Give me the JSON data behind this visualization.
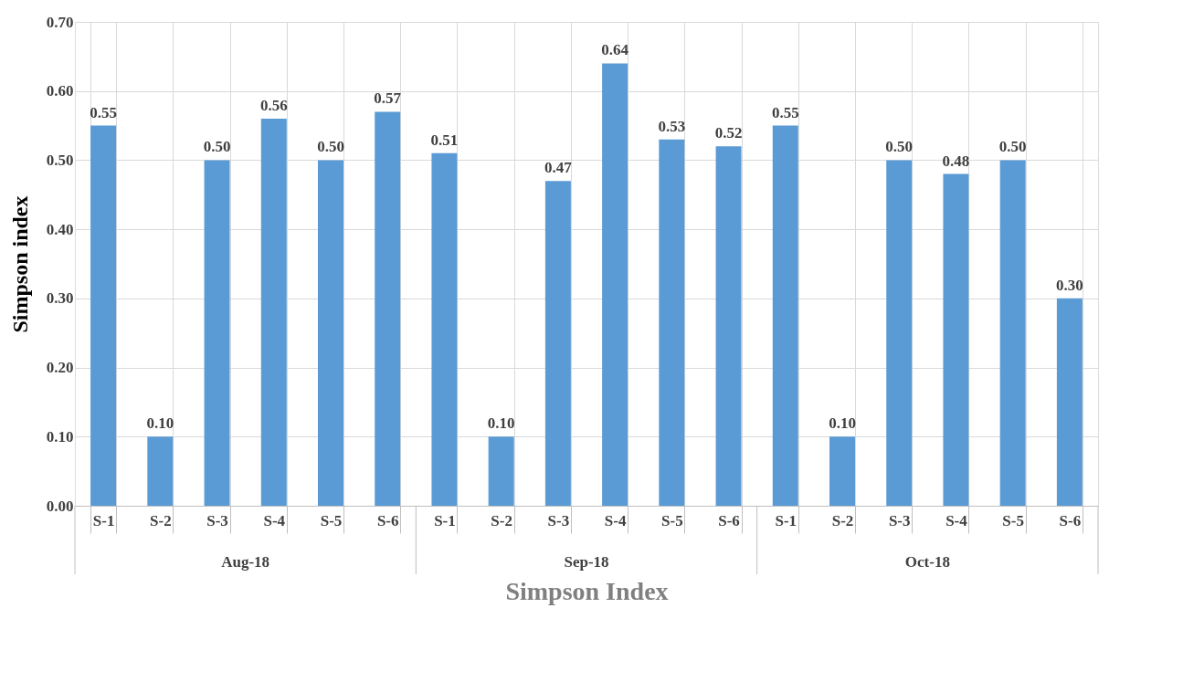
{
  "chart_data": {
    "type": "bar",
    "categories": [
      "S-1",
      "S-2",
      "S-3",
      "S-4",
      "S-5",
      "S-6",
      "S-1",
      "S-2",
      "S-3",
      "S-4",
      "S-5",
      "S-6",
      "S-1",
      "S-2",
      "S-3",
      "S-4",
      "S-5",
      "S-6"
    ],
    "values": [
      0.55,
      0.1,
      0.5,
      0.56,
      0.5,
      0.57,
      0.51,
      0.1,
      0.47,
      0.64,
      0.53,
      0.52,
      0.55,
      0.1,
      0.5,
      0.48,
      0.5,
      0.3
    ],
    "value_labels": [
      "0.55",
      "0.10",
      "0.50",
      "0.56",
      "0.50",
      "0.57",
      "0.51",
      "0.10",
      "0.47",
      "0.64",
      "0.53",
      "0.52",
      "0.55",
      "0.10",
      "0.50",
      "0.48",
      "0.50",
      "0.30"
    ],
    "color": "#5b9bd5",
    "xlabel": "Simpson Index",
    "ylabel": "Simpson index",
    "annotations": [
      "Aug-18",
      "Sep-18",
      "Oct-18"
    ],
    "ylim": [
      0,
      0.7
    ],
    "yticks": [
      {
        "value": 0,
        "label": "0.00"
      },
      {
        "value": 0.1,
        "label": "0.10"
      },
      {
        "value": 0.2,
        "label": "0.20"
      },
      {
        "value": 0.3,
        "label": "0.30"
      },
      {
        "value": 0.4,
        "label": "0.40"
      },
      {
        "value": 0.5,
        "label": "0.50"
      },
      {
        "value": 0.6,
        "label": "0.60"
      },
      {
        "value": 0.7,
        "label": "0.70"
      }
    ],
    "grid": true
  }
}
